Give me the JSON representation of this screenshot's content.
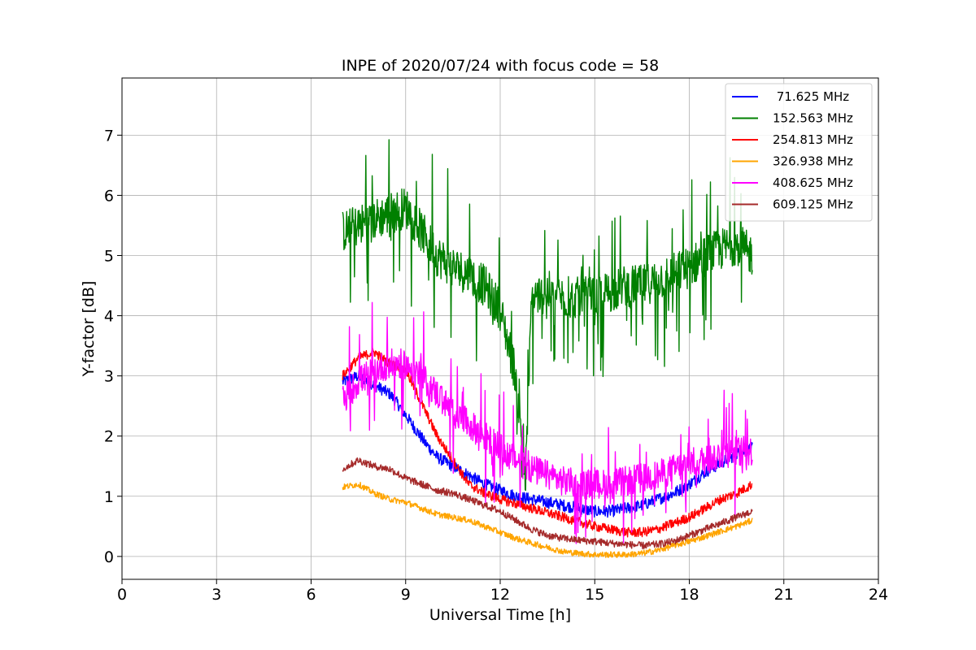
{
  "chart_data": {
    "type": "line",
    "title": "INPE of 2020/07/24 with focus code = 58",
    "xlabel": "Universal Time [h]",
    "ylabel": "Y-factor [dB]",
    "xlim": [
      0,
      24
    ],
    "ylim": [
      -0.38,
      7.95
    ],
    "xticks": [
      0,
      3,
      6,
      9,
      12,
      15,
      18,
      21,
      24
    ],
    "xtick_labels": [
      "0",
      "3",
      "6",
      "9",
      "12",
      "15",
      "18",
      "21",
      "24"
    ],
    "yticks": [
      0,
      1,
      2,
      3,
      4,
      5,
      6,
      7
    ],
    "ytick_labels": [
      "0",
      "1",
      "2",
      "3",
      "4",
      "5",
      "6",
      "7"
    ],
    "grid": true,
    "legend_position": "top-right",
    "series": [
      {
        "name": " 71.625 MHz",
        "color": "#0000ff",
        "noise": 0.1,
        "x": [
          7.0,
          7.5,
          8.0,
          8.5,
          8.8,
          9.2,
          9.6,
          10.0,
          10.5,
          11.0,
          11.5,
          12.0,
          12.5,
          13.0,
          13.5,
          14.0,
          14.5,
          15.0,
          15.5,
          16.0,
          16.5,
          17.0,
          17.5,
          18.0,
          18.5,
          19.0,
          19.5,
          20.0
        ],
        "y": [
          2.9,
          3.0,
          2.85,
          2.7,
          2.5,
          2.2,
          1.9,
          1.65,
          1.5,
          1.35,
          1.2,
          1.1,
          1.0,
          0.95,
          0.9,
          0.85,
          0.8,
          0.75,
          0.75,
          0.8,
          0.85,
          0.95,
          1.05,
          1.2,
          1.4,
          1.55,
          1.7,
          1.8
        ]
      },
      {
        "name": "152.563 MHz",
        "color": "#008000",
        "noise": 0.35,
        "x": [
          7.0,
          7.5,
          8.0,
          8.5,
          9.0,
          9.5,
          10.0,
          10.5,
          11.0,
          11.5,
          12.0,
          12.5,
          12.8,
          13.0,
          13.5,
          14.0,
          14.5,
          15.0,
          15.5,
          16.0,
          16.5,
          17.0,
          17.5,
          18.0,
          18.5,
          19.0,
          19.5,
          20.0
        ],
        "y": [
          5.4,
          5.5,
          5.6,
          5.7,
          5.8,
          5.4,
          5.0,
          4.8,
          4.7,
          4.5,
          4.1,
          3.0,
          1.2,
          4.3,
          4.4,
          4.3,
          4.3,
          4.3,
          4.4,
          4.5,
          4.5,
          4.6,
          4.7,
          4.8,
          5.0,
          5.1,
          5.2,
          5.0
        ]
      },
      {
        "name": "254.813 MHz",
        "color": "#ff0000",
        "noise": 0.08,
        "x": [
          7.0,
          7.5,
          8.0,
          8.5,
          9.0,
          10.0,
          11.0,
          11.5,
          12.0,
          13.0,
          14.0,
          15.0,
          16.0,
          16.5,
          17.0,
          17.5,
          18.0,
          18.5,
          19.0,
          19.5,
          20.0
        ],
        "y": [
          3.0,
          3.3,
          3.4,
          3.2,
          3.1,
          2.0,
          1.2,
          1.05,
          0.95,
          0.8,
          0.65,
          0.5,
          0.4,
          0.4,
          0.45,
          0.55,
          0.65,
          0.8,
          0.95,
          1.05,
          1.2
        ]
      },
      {
        "name": "326.938 MHz",
        "color": "#ffa500",
        "noise": 0.05,
        "x": [
          7.0,
          7.5,
          8.0,
          8.5,
          9.0,
          9.5,
          10.0,
          10.5,
          11.0,
          11.5,
          12.0,
          12.5,
          13.0,
          13.5,
          14.0,
          14.5,
          15.0,
          15.5,
          16.0,
          16.5,
          17.0,
          17.5,
          18.0,
          18.5,
          19.0,
          19.5,
          20.0
        ],
        "y": [
          1.15,
          1.2,
          1.05,
          0.95,
          0.9,
          0.8,
          0.7,
          0.65,
          0.6,
          0.5,
          0.4,
          0.3,
          0.22,
          0.15,
          0.08,
          0.05,
          0.03,
          0.03,
          0.03,
          0.05,
          0.1,
          0.18,
          0.25,
          0.33,
          0.42,
          0.5,
          0.6
        ]
      },
      {
        "name": "408.625 MHz",
        "color": "#ff00ff",
        "noise": 0.25,
        "x": [
          7.0,
          7.5,
          8.0,
          8.5,
          9.0,
          9.5,
          10.0,
          10.5,
          11.0,
          11.5,
          12.0,
          12.5,
          13.0,
          13.5,
          14.0,
          14.5,
          15.0,
          15.5,
          16.0,
          16.5,
          17.0,
          17.5,
          18.0,
          18.5,
          19.0,
          19.5,
          20.0
        ],
        "y": [
          2.6,
          2.9,
          3.1,
          3.2,
          3.2,
          3.0,
          2.7,
          2.4,
          2.2,
          2.0,
          1.8,
          1.6,
          1.45,
          1.35,
          1.25,
          1.2,
          1.2,
          1.2,
          1.25,
          1.3,
          1.35,
          1.45,
          1.55,
          1.6,
          1.7,
          1.75,
          1.75
        ]
      },
      {
        "name": "609.125 MHz",
        "color": "#a52a2a",
        "noise": 0.06,
        "x": [
          7.0,
          7.5,
          8.0,
          8.5,
          9.0,
          9.5,
          10.0,
          10.5,
          11.0,
          11.5,
          12.0,
          12.5,
          13.0,
          13.5,
          14.0,
          14.5,
          15.0,
          15.5,
          16.0,
          16.5,
          17.0,
          17.5,
          18.0,
          18.5,
          19.0,
          19.5,
          20.0
        ],
        "y": [
          1.45,
          1.6,
          1.5,
          1.45,
          1.3,
          1.2,
          1.1,
          1.05,
          0.95,
          0.85,
          0.75,
          0.6,
          0.45,
          0.35,
          0.3,
          0.27,
          0.25,
          0.22,
          0.2,
          0.18,
          0.2,
          0.25,
          0.35,
          0.45,
          0.55,
          0.65,
          0.75
        ]
      }
    ]
  }
}
